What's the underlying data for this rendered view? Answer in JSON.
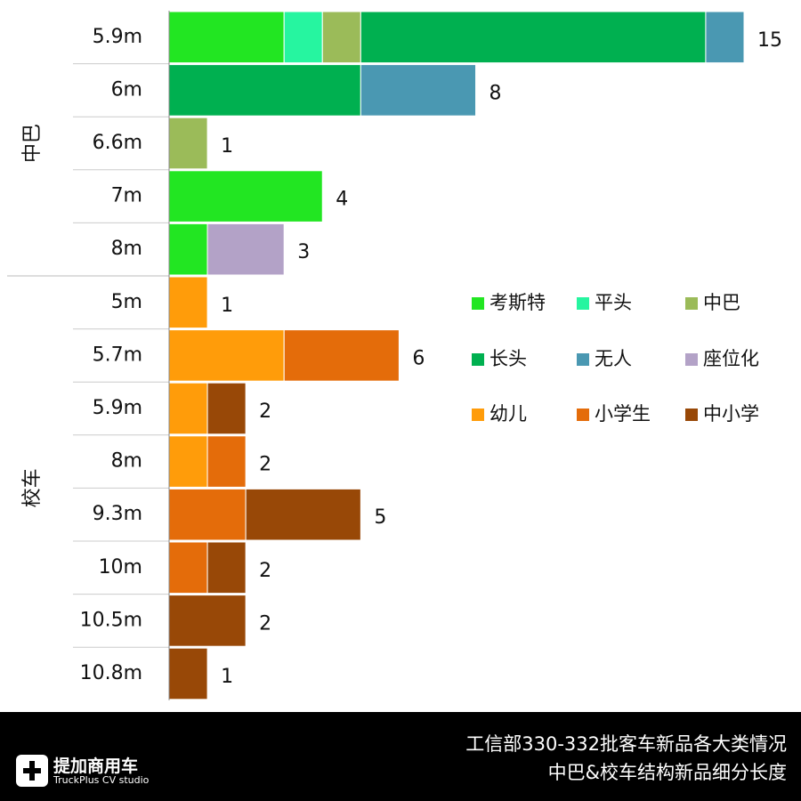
{
  "chart_data": {
    "type": "bar",
    "orientation": "horizontal",
    "stacked": true,
    "title": "工信部330-332批客车新品各大类情况",
    "subtitle": "中巴&校车结构新品细分长度",
    "groups": [
      {
        "name": "中巴",
        "categories": [
          "5.9m",
          "6m",
          "6.6m",
          "7m",
          "8m"
        ]
      },
      {
        "name": "校车",
        "categories": [
          "5m",
          "5.7m",
          "5.9m",
          "8m",
          "9.3m",
          "10m",
          "10.5m",
          "10.8m"
        ]
      }
    ],
    "series": [
      {
        "name": "考斯特",
        "color": "#22e622",
        "values": [
          3,
          null,
          null,
          4,
          1,
          null,
          null,
          null,
          null,
          null,
          null,
          null,
          null
        ]
      },
      {
        "name": "平头",
        "color": "#26f5a0",
        "values": [
          1,
          null,
          null,
          null,
          null,
          null,
          null,
          null,
          null,
          null,
          null,
          null,
          null
        ]
      },
      {
        "name": "中巴",
        "color": "#9bbb59",
        "values": [
          1,
          null,
          1,
          null,
          null,
          null,
          null,
          null,
          null,
          null,
          null,
          null,
          null
        ]
      },
      {
        "name": "长头",
        "color": "#00b050",
        "values": [
          9,
          5,
          null,
          null,
          null,
          null,
          null,
          null,
          null,
          null,
          null,
          null,
          null
        ]
      },
      {
        "name": "无人",
        "color": "#4a98b2",
        "values": [
          1,
          3,
          null,
          null,
          null,
          null,
          null,
          null,
          null,
          null,
          null,
          null,
          null
        ]
      },
      {
        "name": "座位化",
        "color": "#b3a2c7",
        "values": [
          null,
          null,
          null,
          null,
          2,
          null,
          null,
          null,
          null,
          null,
          null,
          null,
          null
        ]
      },
      {
        "name": "幼儿",
        "color": "#ff9c0a",
        "values": [
          null,
          null,
          null,
          null,
          null,
          1,
          3,
          1,
          1,
          null,
          null,
          null,
          null
        ]
      },
      {
        "name": "小学生",
        "color": "#e46c0a",
        "values": [
          null,
          null,
          null,
          null,
          null,
          null,
          3,
          null,
          1,
          2,
          1,
          null,
          null
        ]
      },
      {
        "name": "中小学",
        "color": "#984807",
        "values": [
          null,
          null,
          null,
          null,
          null,
          null,
          null,
          1,
          null,
          3,
          1,
          2,
          1
        ]
      }
    ],
    "totals": [
      15,
      8,
      1,
      4,
      3,
      1,
      6,
      2,
      2,
      5,
      2,
      2,
      1
    ]
  },
  "brand": {
    "name": "提加商用车",
    "tagline": "TruckPlus CV studio"
  }
}
